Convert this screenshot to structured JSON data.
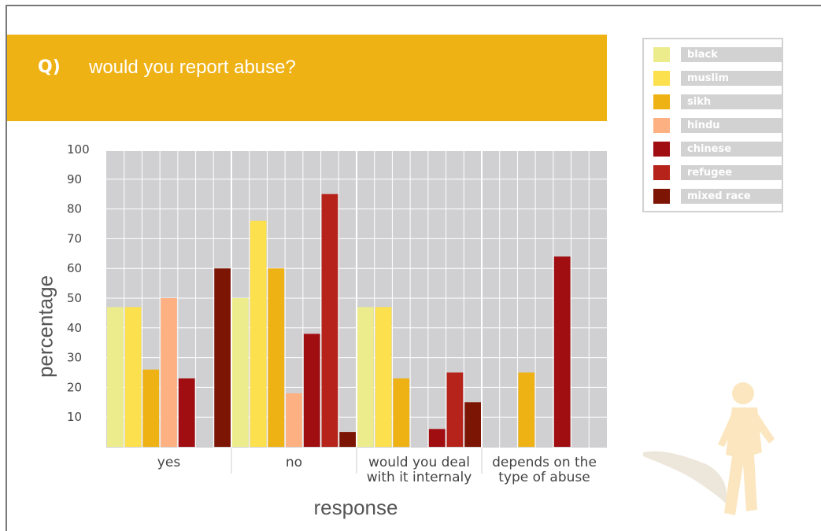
{
  "header": {
    "question_label": "Q)",
    "question_text": "would you report abuse?"
  },
  "colors": {
    "header_band": "#efb215",
    "plot_bg": "#d0d0d2",
    "grid": "#ffffff",
    "legend_label_bg": "#d2d2d2"
  },
  "chart_data": {
    "type": "bar",
    "title": "",
    "xlabel": "response",
    "ylabel": "percentage",
    "ylim": [
      0,
      100
    ],
    "yticks": [
      10,
      20,
      30,
      40,
      50,
      60,
      70,
      80,
      90,
      100
    ],
    "grid": true,
    "legend_position": "top-right",
    "categories": [
      "yes",
      "no",
      "would you deal\nwith it internaly",
      "depends on the\ntype of abuse"
    ],
    "series": [
      {
        "name": "black",
        "color": "#ecec8c",
        "values": [
          47,
          50,
          47,
          0
        ]
      },
      {
        "name": "muslim",
        "color": "#fde04d",
        "values": [
          47,
          76,
          47,
          0
        ]
      },
      {
        "name": "sikh",
        "color": "#efb215",
        "values": [
          26,
          60,
          23,
          25
        ]
      },
      {
        "name": "hindu",
        "color": "#fdb183",
        "values": [
          50,
          18,
          0,
          0
        ]
      },
      {
        "name": "chinese",
        "color": "#a10e12",
        "values": [
          23,
          38,
          6,
          64
        ]
      },
      {
        "name": "refugee",
        "color": "#b5231b",
        "values": [
          0,
          85,
          25,
          0
        ]
      },
      {
        "name": "mixed race",
        "color": "#7d1505",
        "values": [
          60,
          5,
          15,
          0
        ]
      }
    ]
  }
}
